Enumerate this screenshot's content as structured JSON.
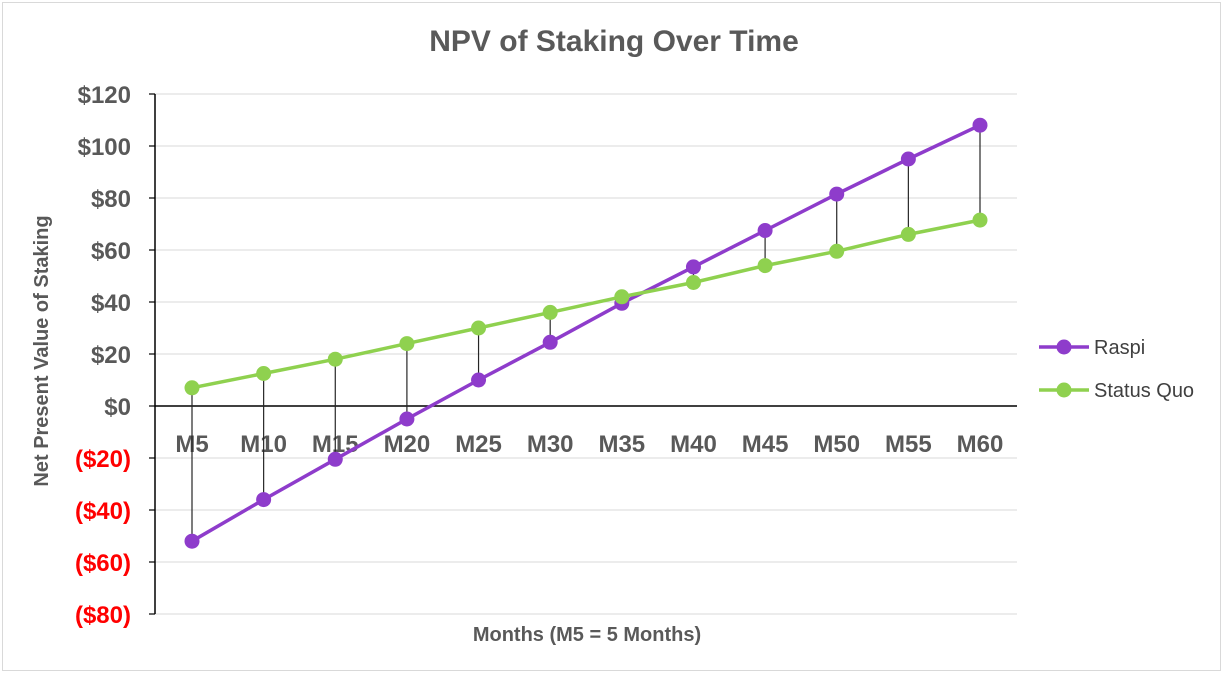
{
  "chart_data": {
    "type": "line",
    "title": "NPV of Staking Over Time",
    "xlabel": "Months (M5 = 5 Months)",
    "ylabel": "Net Present Value of Staking",
    "categories": [
      "M5",
      "M10",
      "M15",
      "M20",
      "M25",
      "M30",
      "M35",
      "M40",
      "M45",
      "M50",
      "M55",
      "M60"
    ],
    "ylim": [
      -80,
      120
    ],
    "yticks": [
      120,
      100,
      80,
      60,
      40,
      20,
      0,
      -20,
      -40,
      -60,
      -80
    ],
    "ytick_labels": [
      "$120",
      "$100",
      "$80",
      "$60",
      "$40",
      "$20",
      "$0",
      "($20)",
      "($40)",
      "($60)",
      "($80)"
    ],
    "series": [
      {
        "name": "Raspi",
        "color": "#8e3ccb",
        "values": [
          -52,
          -36,
          -20.5,
          -5,
          10,
          24.5,
          39.5,
          53.5,
          67.5,
          81.5,
          95,
          108
        ]
      },
      {
        "name": "Status Quo",
        "color": "#8fd14f",
        "values": [
          7,
          12.5,
          18,
          24,
          30,
          36,
          42,
          47.5,
          54,
          59.5,
          66,
          71.5
        ]
      }
    ],
    "drop_lines": true,
    "grid": true,
    "legend_position": "right",
    "negative_tick_color": "#ff0000",
    "positive_tick_color": "#595959"
  }
}
